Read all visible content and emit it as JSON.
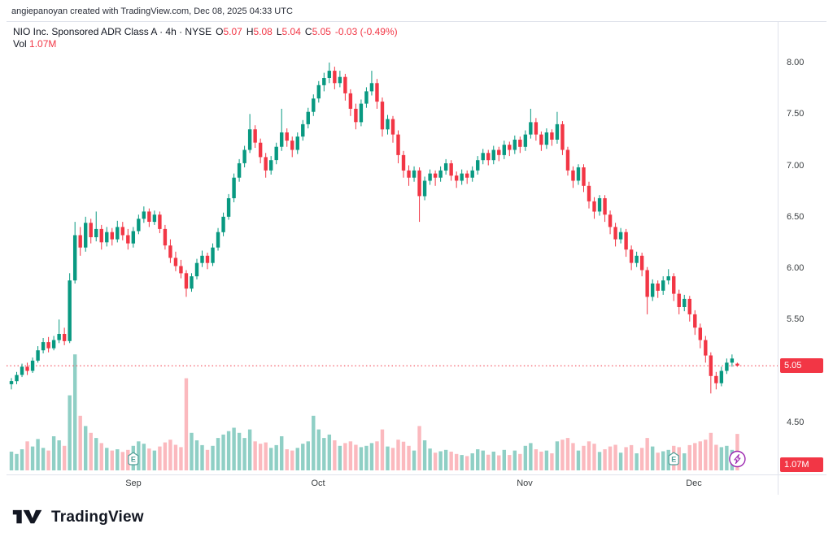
{
  "attribution": "angiepanoyan created with TradingView.com, Dec 08, 2025 04:33 UTC",
  "legend": {
    "title": "NIO Inc. Sponsored ADR Class A · 4h · NYSE",
    "open_label": "O",
    "open": "5.07",
    "high_label": "H",
    "high": "5.08",
    "low_label": "L",
    "low": "5.04",
    "close_label": "C",
    "close": "5.05",
    "change": "-0.03 (-0.49%)",
    "vol_label": "Vol",
    "vol_value": "1.07M"
  },
  "price_axis": {
    "badge": "5.05",
    "vol_badge": "1.07M"
  },
  "footer": {
    "brand": "TradingView"
  },
  "colors": {
    "up": "#089981",
    "down": "#f23645",
    "vol_up": "#8fcfc5",
    "vol_down": "#fbb9be",
    "text": "#131722",
    "border": "#e0e3eb",
    "earnings_marker": "#4f9e97",
    "bolt": "#9c27b0"
  },
  "chart_data": {
    "type": "candlestick",
    "symbol": "NIO Inc. Sponsored ADR Class A",
    "exchange": "NYSE",
    "interval": "4h",
    "last_price": 5.05,
    "last_volume_label": "1.07M",
    "y_ticks": [
      8.0,
      7.5,
      7.0,
      6.5,
      6.0,
      5.5,
      4.5
    ],
    "y_range": [
      4.45,
      8.15
    ],
    "x_ticks": [
      {
        "label": "Sep",
        "index": 23
      },
      {
        "label": "Oct",
        "index": 58
      },
      {
        "label": "Nov",
        "index": 97
      },
      {
        "label": "Dec",
        "index": 129
      }
    ],
    "earnings_marker_indexes": [
      23,
      125
    ],
    "columns": [
      "open",
      "high",
      "low",
      "close",
      "volume_millions"
    ],
    "candles": [
      [
        4.87,
        4.93,
        4.82,
        4.9,
        0.55
      ],
      [
        4.9,
        4.99,
        4.87,
        4.96,
        0.48
      ],
      [
        4.96,
        5.07,
        4.94,
        5.04,
        0.62
      ],
      [
        5.04,
        5.08,
        4.96,
        5.0,
        0.85
      ],
      [
        5.0,
        5.13,
        4.98,
        5.1,
        0.7
      ],
      [
        5.1,
        5.24,
        5.08,
        5.2,
        0.92
      ],
      [
        5.2,
        5.32,
        5.17,
        5.28,
        0.66
      ],
      [
        5.28,
        5.33,
        5.18,
        5.22,
        0.58
      ],
      [
        5.22,
        5.34,
        5.2,
        5.3,
        1.0
      ],
      [
        5.3,
        5.5,
        5.27,
        5.36,
        0.88
      ],
      [
        5.36,
        5.42,
        5.25,
        5.29,
        0.72
      ],
      [
        5.29,
        5.95,
        5.27,
        5.88,
        2.2
      ],
      [
        5.88,
        6.45,
        5.85,
        6.32,
        3.4
      ],
      [
        6.32,
        6.4,
        6.12,
        6.2,
        1.6
      ],
      [
        6.2,
        6.5,
        6.16,
        6.44,
        1.3
      ],
      [
        6.44,
        6.48,
        6.24,
        6.3,
        1.1
      ],
      [
        6.3,
        6.55,
        6.26,
        6.38,
        0.95
      ],
      [
        6.38,
        6.42,
        6.18,
        6.25,
        0.8
      ],
      [
        6.25,
        6.4,
        6.21,
        6.35,
        0.66
      ],
      [
        6.35,
        6.39,
        6.22,
        6.28,
        0.58
      ],
      [
        6.28,
        6.46,
        6.25,
        6.4,
        0.62
      ],
      [
        6.4,
        6.45,
        6.27,
        6.32,
        0.54
      ],
      [
        6.32,
        6.38,
        6.18,
        6.24,
        0.6
      ],
      [
        6.24,
        6.4,
        6.2,
        6.36,
        0.72
      ],
      [
        6.36,
        6.52,
        6.33,
        6.48,
        0.85
      ],
      [
        6.48,
        6.6,
        6.44,
        6.55,
        0.78
      ],
      [
        6.55,
        6.58,
        6.4,
        6.45,
        0.64
      ],
      [
        6.45,
        6.56,
        6.42,
        6.52,
        0.58
      ],
      [
        6.52,
        6.55,
        6.34,
        6.38,
        0.7
      ],
      [
        6.38,
        6.42,
        6.18,
        6.22,
        0.82
      ],
      [
        6.22,
        6.28,
        6.05,
        6.1,
        0.9
      ],
      [
        6.1,
        6.16,
        5.97,
        6.02,
        0.75
      ],
      [
        6.02,
        6.08,
        5.9,
        5.95,
        0.68
      ],
      [
        5.95,
        5.98,
        5.72,
        5.8,
        2.7
      ],
      [
        5.8,
        5.95,
        5.77,
        5.92,
        1.1
      ],
      [
        5.92,
        6.09,
        5.89,
        6.05,
        0.88
      ],
      [
        6.05,
        6.17,
        6.01,
        6.12,
        0.74
      ],
      [
        6.12,
        6.15,
        5.99,
        6.05,
        0.6
      ],
      [
        6.05,
        6.24,
        6.02,
        6.2,
        0.72
      ],
      [
        6.2,
        6.39,
        6.17,
        6.35,
        0.95
      ],
      [
        6.35,
        6.54,
        6.31,
        6.5,
        1.05
      ],
      [
        6.5,
        6.72,
        6.47,
        6.68,
        1.15
      ],
      [
        6.68,
        6.92,
        6.64,
        6.88,
        1.25
      ],
      [
        6.88,
        7.06,
        6.84,
        7.02,
        1.1
      ],
      [
        7.02,
        7.19,
        6.98,
        7.15,
        0.95
      ],
      [
        7.15,
        7.5,
        7.12,
        7.35,
        1.2
      ],
      [
        7.35,
        7.39,
        7.17,
        7.22,
        0.85
      ],
      [
        7.22,
        7.26,
        7.02,
        7.08,
        0.78
      ],
      [
        7.08,
        7.12,
        6.88,
        6.95,
        0.82
      ],
      [
        6.95,
        7.09,
        6.91,
        7.05,
        0.66
      ],
      [
        7.05,
        7.22,
        7.01,
        7.18,
        0.74
      ],
      [
        7.18,
        7.55,
        7.14,
        7.32,
        1.0
      ],
      [
        7.32,
        7.36,
        7.18,
        7.24,
        0.62
      ],
      [
        7.24,
        7.28,
        7.08,
        7.15,
        0.58
      ],
      [
        7.15,
        7.32,
        7.11,
        7.28,
        0.66
      ],
      [
        7.28,
        7.44,
        7.24,
        7.4,
        0.78
      ],
      [
        7.4,
        7.56,
        7.36,
        7.52,
        0.85
      ],
      [
        7.52,
        7.69,
        7.48,
        7.65,
        1.6
      ],
      [
        7.65,
        7.82,
        7.61,
        7.78,
        1.2
      ],
      [
        7.78,
        7.9,
        7.72,
        7.85,
        0.95
      ],
      [
        7.85,
        8.0,
        7.8,
        7.92,
        1.05
      ],
      [
        7.92,
        7.96,
        7.74,
        7.8,
        0.88
      ],
      [
        7.8,
        7.92,
        7.76,
        7.86,
        0.72
      ],
      [
        7.86,
        7.89,
        7.63,
        7.7,
        0.8
      ],
      [
        7.7,
        7.74,
        7.48,
        7.55,
        0.85
      ],
      [
        7.55,
        7.6,
        7.35,
        7.42,
        0.75
      ],
      [
        7.42,
        7.64,
        7.38,
        7.6,
        0.68
      ],
      [
        7.6,
        7.76,
        7.56,
        7.72,
        0.72
      ],
      [
        7.72,
        7.92,
        7.68,
        7.8,
        0.8
      ],
      [
        7.8,
        7.84,
        7.55,
        7.62,
        0.85
      ],
      [
        7.62,
        7.66,
        7.28,
        7.35,
        1.2
      ],
      [
        7.35,
        7.49,
        7.3,
        7.45,
        0.7
      ],
      [
        7.45,
        7.48,
        7.22,
        7.3,
        0.66
      ],
      [
        7.3,
        7.34,
        7.02,
        7.1,
        0.9
      ],
      [
        7.1,
        7.14,
        6.88,
        6.95,
        0.84
      ],
      [
        6.95,
        7.0,
        6.8,
        6.88,
        0.72
      ],
      [
        6.88,
        6.99,
        6.84,
        6.95,
        0.58
      ],
      [
        6.95,
        6.98,
        6.45,
        6.7,
        1.3
      ],
      [
        6.7,
        6.89,
        6.66,
        6.85,
        0.88
      ],
      [
        6.85,
        6.96,
        6.81,
        6.92,
        0.64
      ],
      [
        6.92,
        6.95,
        6.8,
        6.88,
        0.52
      ],
      [
        6.88,
        6.99,
        6.84,
        6.95,
        0.56
      ],
      [
        6.95,
        7.06,
        6.91,
        7.02,
        0.6
      ],
      [
        7.02,
        7.05,
        6.85,
        6.9,
        0.55
      ],
      [
        6.9,
        6.94,
        6.78,
        6.85,
        0.48
      ],
      [
        6.85,
        6.96,
        6.81,
        6.92,
        0.45
      ],
      [
        6.92,
        6.95,
        6.82,
        6.88,
        0.42
      ],
      [
        6.88,
        6.99,
        6.84,
        6.95,
        0.5
      ],
      [
        6.95,
        7.09,
        6.91,
        7.05,
        0.62
      ],
      [
        7.05,
        7.16,
        7.01,
        7.12,
        0.58
      ],
      [
        7.12,
        7.15,
        7.0,
        7.05,
        0.46
      ],
      [
        7.05,
        7.19,
        7.01,
        7.15,
        0.55
      ],
      [
        7.15,
        7.18,
        7.04,
        7.1,
        0.44
      ],
      [
        7.1,
        7.24,
        7.06,
        7.2,
        0.6
      ],
      [
        7.2,
        7.23,
        7.09,
        7.15,
        0.45
      ],
      [
        7.15,
        7.29,
        7.11,
        7.25,
        0.58
      ],
      [
        7.25,
        7.28,
        7.12,
        7.18,
        0.48
      ],
      [
        7.18,
        7.34,
        7.14,
        7.3,
        0.72
      ],
      [
        7.3,
        7.55,
        7.26,
        7.42,
        0.8
      ],
      [
        7.42,
        7.46,
        7.24,
        7.3,
        0.62
      ],
      [
        7.3,
        7.33,
        7.14,
        7.2,
        0.55
      ],
      [
        7.2,
        7.36,
        7.16,
        7.32,
        0.58
      ],
      [
        7.32,
        7.35,
        7.19,
        7.25,
        0.5
      ],
      [
        7.25,
        7.52,
        7.21,
        7.4,
        0.85
      ],
      [
        7.4,
        7.43,
        7.1,
        7.15,
        0.9
      ],
      [
        7.15,
        7.18,
        6.9,
        6.95,
        0.95
      ],
      [
        6.95,
        6.99,
        6.78,
        6.85,
        0.8
      ],
      [
        6.85,
        7.01,
        6.81,
        6.98,
        0.58
      ],
      [
        6.98,
        7.01,
        6.74,
        6.8,
        0.72
      ],
      [
        6.8,
        6.84,
        6.58,
        6.65,
        0.85
      ],
      [
        6.65,
        6.69,
        6.48,
        6.55,
        0.78
      ],
      [
        6.55,
        6.71,
        6.51,
        6.68,
        0.54
      ],
      [
        6.68,
        6.71,
        6.45,
        6.52,
        0.62
      ],
      [
        6.52,
        6.56,
        6.33,
        6.4,
        0.7
      ],
      [
        6.4,
        6.44,
        6.21,
        6.28,
        0.75
      ],
      [
        6.28,
        6.39,
        6.24,
        6.35,
        0.52
      ],
      [
        6.35,
        6.38,
        6.11,
        6.18,
        0.68
      ],
      [
        6.18,
        6.22,
        5.98,
        6.05,
        0.74
      ],
      [
        6.05,
        6.16,
        6.01,
        6.12,
        0.5
      ],
      [
        6.12,
        6.15,
        5.92,
        5.98,
        0.66
      ],
      [
        5.98,
        6.01,
        5.55,
        5.72,
        0.95
      ],
      [
        5.72,
        5.89,
        5.68,
        5.85,
        0.7
      ],
      [
        5.85,
        5.88,
        5.71,
        5.78,
        0.52
      ],
      [
        5.78,
        5.92,
        5.74,
        5.88,
        0.56
      ],
      [
        5.88,
        5.99,
        5.84,
        5.92,
        0.6
      ],
      [
        5.92,
        5.95,
        5.68,
        5.75,
        0.72
      ],
      [
        5.75,
        5.79,
        5.55,
        5.62,
        0.68
      ],
      [
        5.62,
        5.74,
        5.58,
        5.7,
        0.5
      ],
      [
        5.7,
        5.73,
        5.48,
        5.55,
        0.74
      ],
      [
        5.55,
        5.59,
        5.35,
        5.42,
        0.8
      ],
      [
        5.42,
        5.46,
        5.22,
        5.3,
        0.85
      ],
      [
        5.3,
        5.34,
        5.08,
        5.15,
        0.9
      ],
      [
        5.15,
        5.18,
        4.78,
        4.95,
        1.1
      ],
      [
        4.95,
        4.99,
        4.82,
        4.88,
        0.75
      ],
      [
        4.88,
        5.04,
        4.85,
        5.0,
        0.68
      ],
      [
        5.0,
        5.12,
        4.97,
        5.08,
        0.72
      ],
      [
        5.08,
        5.16,
        5.04,
        5.12,
        0.6
      ],
      [
        5.07,
        5.08,
        5.04,
        5.05,
        1.07
      ]
    ]
  }
}
